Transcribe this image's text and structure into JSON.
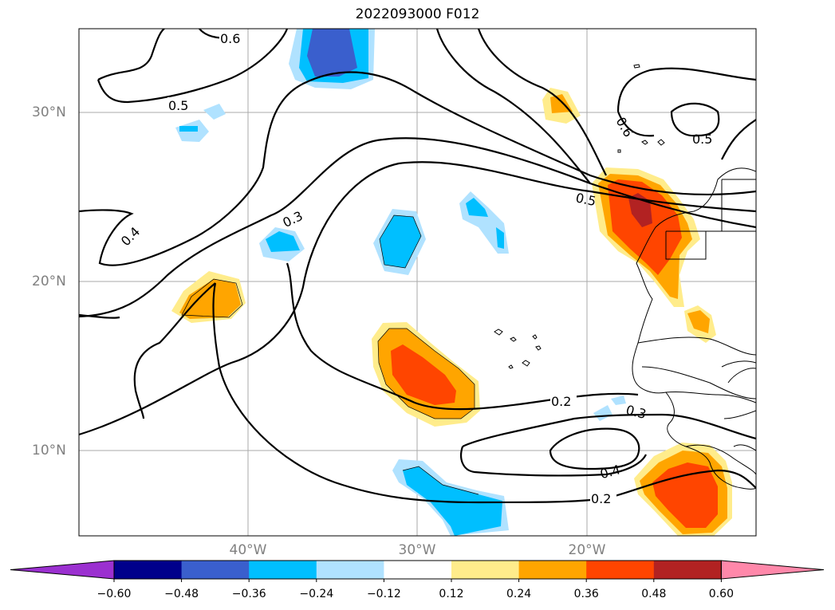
{
  "title": "2022093000 F012",
  "axes": {
    "lat_labels": [
      "30°N",
      "20°N",
      "10°N"
    ],
    "lon_labels": [
      "40°W",
      "30°W",
      "20°W"
    ]
  },
  "colorbar": {
    "ticks": [
      "−0.60",
      "−0.48",
      "−0.36",
      "−0.24",
      "−0.12",
      "0.12",
      "0.24",
      "0.36",
      "0.48",
      "0.60"
    ],
    "colors": [
      "#9b30d0",
      "#00008b",
      "#3a5fcd",
      "#00bfff",
      "#b0e2ff",
      "#ffffff",
      "#ffec8b",
      "#ffa500",
      "#ff4500",
      "#b22222",
      "#ff88aa"
    ]
  },
  "contour_labels": [
    "0.6",
    "0.5",
    "0.4",
    "0.3",
    "0.2",
    "0.3",
    "0.4",
    "0.2",
    "0.5",
    "0.6",
    "0.5"
  ]
}
